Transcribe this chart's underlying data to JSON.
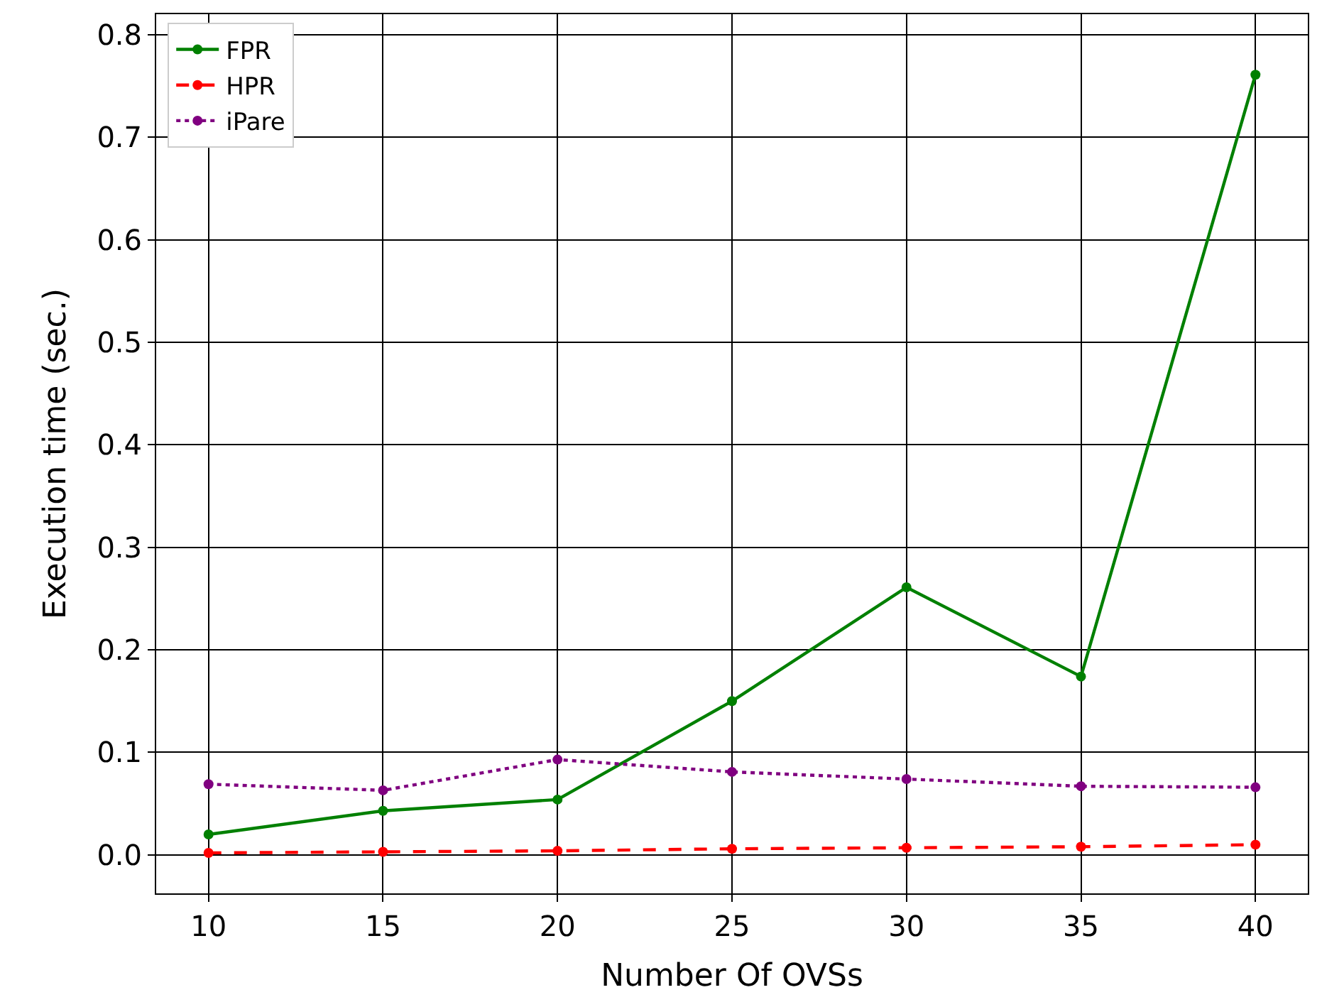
{
  "chart_data": {
    "type": "line",
    "xlabel": "Number Of OVSs",
    "ylabel": "Execution time (sec.)",
    "x": [
      10,
      15,
      20,
      25,
      30,
      35,
      40
    ],
    "series": [
      {
        "name": "FPR",
        "color": "#008000",
        "line_style": "solid",
        "values": [
          0.02,
          0.043,
          0.054,
          0.15,
          0.261,
          0.174,
          0.761
        ]
      },
      {
        "name": "HPR",
        "color": "#ff0000",
        "line_style": "dashed",
        "values": [
          0.002,
          0.003,
          0.004,
          0.006,
          0.007,
          0.008,
          0.01
        ]
      },
      {
        "name": "iPare",
        "color": "#800080",
        "line_style": "dotted",
        "values": [
          0.069,
          0.063,
          0.093,
          0.081,
          0.074,
          0.067,
          0.066
        ]
      }
    ],
    "xlim": [
      8.5,
      41.5
    ],
    "xticks": [
      10,
      15,
      20,
      25,
      30,
      35,
      40
    ],
    "ylim": [
      -0.0375,
      0.82
    ],
    "yticks": [
      {
        "value": 0.0,
        "label": "0.0"
      },
      {
        "value": 0.1,
        "label": "0.1"
      },
      {
        "value": 0.2,
        "label": "0.2"
      },
      {
        "value": 0.3,
        "label": "0.3"
      },
      {
        "value": 0.4,
        "label": "0.4"
      },
      {
        "value": 0.5,
        "label": "0.5"
      },
      {
        "value": 0.6,
        "label": "0.6"
      },
      {
        "value": 0.7,
        "label": "0.7"
      },
      {
        "value": 0.8,
        "label": "0.8"
      }
    ],
    "grid": true,
    "legend": "top left",
    "marker": "circle"
  }
}
